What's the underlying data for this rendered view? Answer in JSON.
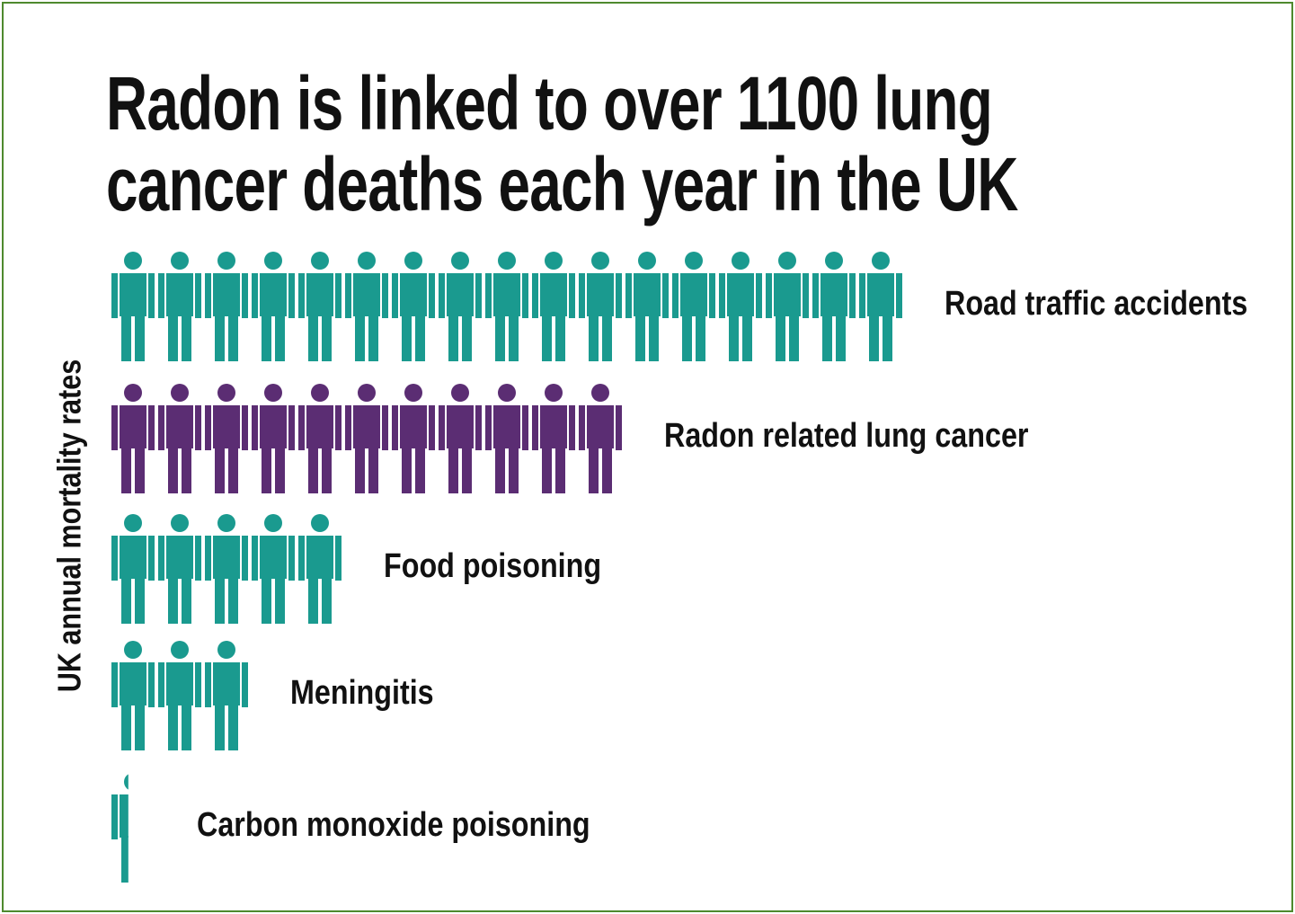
{
  "chart_data": {
    "type": "pictograph",
    "title": "Radon is linked to over 1100 lung\ncancer deaths each year in the UK",
    "y_label": "UK annual mortality rates",
    "categories": [
      "Road traffic accidents",
      "Radon related lung cancer",
      "Food poisoning",
      "Meningitis",
      "Carbon monoxide poisoning"
    ],
    "values": [
      17,
      11,
      5,
      3,
      0.4
    ],
    "colors": [
      "#1a9a8f",
      "#5b2d73",
      "#1a9a8f",
      "#1a9a8f",
      "#1a9a8f"
    ]
  }
}
